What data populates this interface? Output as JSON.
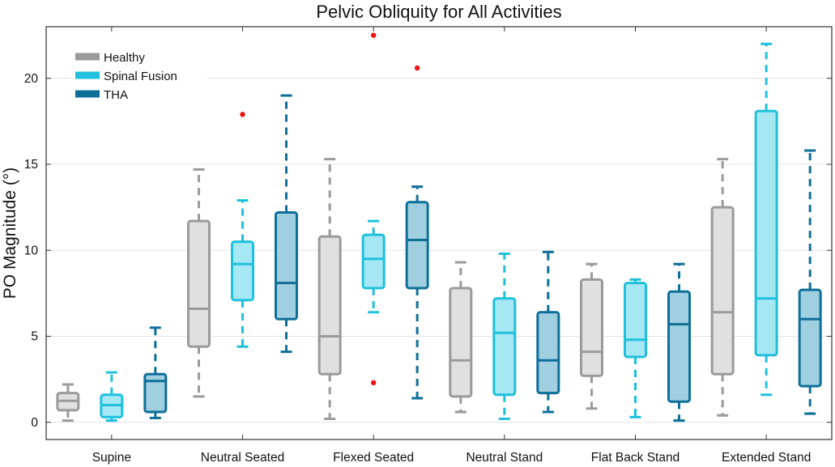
{
  "chart_data": {
    "type": "boxplot",
    "title": "Pelvic Obliquity for All Activities",
    "xlabel": "",
    "ylabel": "PO Magnitude (°)",
    "ylim": [
      -1,
      23
    ],
    "yticks": [
      0,
      5,
      10,
      15,
      20
    ],
    "grid": "horizontal",
    "legend_position": "top-left",
    "categories": [
      "Supine",
      "Neutral Seated",
      "Flexed Seated",
      "Neutral Stand",
      "Flat Back Stand",
      "Extended Stand"
    ],
    "series": [
      {
        "name": "Healthy",
        "color": "#9a9a9a",
        "fill": "#e0e0e0",
        "boxes": [
          {
            "min": 0.1,
            "q1": 0.7,
            "median": 1.25,
            "q3": 1.7,
            "max": 2.2,
            "outliers": []
          },
          {
            "min": 1.5,
            "q1": 4.4,
            "median": 6.6,
            "q3": 11.7,
            "max": 14.7,
            "outliers": []
          },
          {
            "min": 0.2,
            "q1": 2.8,
            "median": 5.0,
            "q3": 10.8,
            "max": 15.3,
            "outliers": []
          },
          {
            "min": 0.6,
            "q1": 1.5,
            "median": 3.6,
            "q3": 7.8,
            "max": 9.3,
            "outliers": []
          },
          {
            "min": 0.8,
            "q1": 2.7,
            "median": 4.1,
            "q3": 8.3,
            "max": 9.2,
            "outliers": []
          },
          {
            "min": 0.4,
            "q1": 2.8,
            "median": 6.4,
            "q3": 12.5,
            "max": 15.3,
            "outliers": []
          }
        ]
      },
      {
        "name": "Spinal Fusion",
        "color": "#1fc0dc",
        "fill": "#a5e7f3",
        "boxes": [
          {
            "min": 0.1,
            "q1": 0.3,
            "median": 1.0,
            "q3": 1.6,
            "max": 2.9,
            "outliers": []
          },
          {
            "min": 4.4,
            "q1": 7.1,
            "median": 9.2,
            "q3": 10.5,
            "max": 12.9,
            "outliers": [
              17.9
            ]
          },
          {
            "min": 6.4,
            "q1": 7.8,
            "median": 9.5,
            "q3": 10.9,
            "max": 11.7,
            "outliers": [
              22.5,
              2.3
            ]
          },
          {
            "min": 0.2,
            "q1": 1.6,
            "median": 5.2,
            "q3": 7.2,
            "max": 9.8,
            "outliers": []
          },
          {
            "min": 0.3,
            "q1": 3.8,
            "median": 4.8,
            "q3": 8.1,
            "max": 8.3,
            "outliers": []
          },
          {
            "min": 1.6,
            "q1": 3.9,
            "median": 7.2,
            "q3": 18.1,
            "max": 22.0,
            "outliers": []
          }
        ]
      },
      {
        "name": "THA",
        "color": "#0e6f99",
        "fill": "#a0cfe0",
        "boxes": [
          {
            "min": 0.25,
            "q1": 0.6,
            "median": 2.4,
            "q3": 2.8,
            "max": 5.5,
            "outliers": []
          },
          {
            "min": 4.1,
            "q1": 6.0,
            "median": 8.1,
            "q3": 12.2,
            "max": 19.0,
            "outliers": []
          },
          {
            "min": 1.4,
            "q1": 7.8,
            "median": 10.6,
            "q3": 12.8,
            "max": 13.7,
            "outliers": [
              20.6
            ]
          },
          {
            "min": 0.6,
            "q1": 1.7,
            "median": 3.6,
            "q3": 6.4,
            "max": 9.9,
            "outliers": []
          },
          {
            "min": 0.1,
            "q1": 1.2,
            "median": 5.7,
            "q3": 7.6,
            "max": 9.2,
            "outliers": []
          },
          {
            "min": 0.5,
            "q1": 2.1,
            "median": 6.0,
            "q3": 7.7,
            "max": 15.8,
            "outliers": []
          }
        ]
      }
    ],
    "outlier_color": "#ee1111"
  }
}
